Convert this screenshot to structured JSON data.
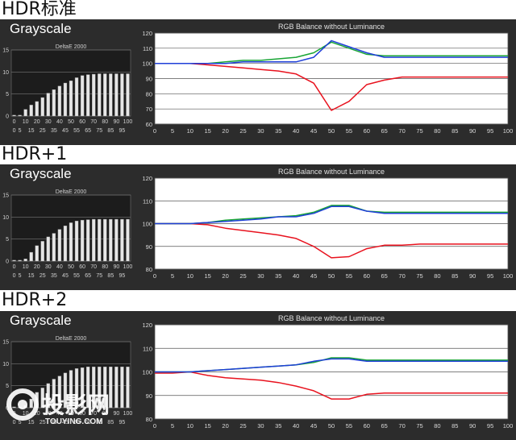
{
  "sections": [
    {
      "label": "HDR标准",
      "grayscale_title": "Grayscale"
    },
    {
      "label": "HDR+1",
      "grayscale_title": "Grayscale"
    },
    {
      "label": "HDR+2",
      "grayscale_title": "Grayscale"
    }
  ],
  "watermark": {
    "brand": "投影网",
    "url": "TOUYING.COM"
  },
  "colors": {
    "red": "#e8121e",
    "green": "#19a535",
    "blue": "#1f3fd8",
    "panel": "#2c2c2c"
  },
  "chart_data": [
    {
      "type": "bar",
      "title": "DeltaE 2000",
      "categories": [
        "0",
        "5",
        "10",
        "15",
        "20",
        "25",
        "30",
        "35",
        "40",
        "45",
        "50",
        "55",
        "60",
        "65",
        "70",
        "75",
        "80",
        "85",
        "90",
        "95",
        "100"
      ],
      "tick_labels": [
        "0",
        "5",
        "15",
        "25",
        "35",
        "45",
        "55",
        "65",
        "75",
        "85",
        "95"
      ],
      "values": [
        0.2,
        0.2,
        1.5,
        2.5,
        3.3,
        4.2,
        5.2,
        6.0,
        6.8,
        7.5,
        8.0,
        8.7,
        9.2,
        9.4,
        9.5,
        9.6,
        9.6,
        9.6,
        9.6,
        9.6,
        9.6
      ],
      "ylim": [
        0,
        15
      ],
      "yticks": [
        0,
        5,
        10,
        15
      ]
    },
    {
      "type": "line",
      "title": "RGB Balance without Luminance",
      "x": [
        0,
        5,
        10,
        15,
        20,
        25,
        30,
        35,
        40,
        45,
        50,
        55,
        60,
        65,
        70,
        75,
        80,
        85,
        90,
        95,
        100
      ],
      "ylim": [
        60,
        120
      ],
      "yticks": [
        60,
        70,
        80,
        90,
        100,
        110,
        120
      ],
      "series": [
        {
          "color": "red",
          "values": [
            100,
            100,
            100,
            99,
            98,
            97,
            96,
            95,
            93,
            87,
            69,
            75,
            86,
            89,
            91,
            91,
            91,
            91,
            91,
            91,
            91
          ]
        },
        {
          "color": "green",
          "values": [
            100,
            100,
            100,
            100,
            101,
            102,
            102,
            103,
            104,
            107,
            114,
            110,
            106,
            105,
            105,
            105,
            105,
            105,
            105,
            105,
            105
          ]
        },
        {
          "color": "blue",
          "values": [
            100,
            100,
            100,
            100,
            100,
            101,
            101,
            101,
            101,
            104,
            115,
            111,
            107,
            104,
            104,
            104,
            104,
            104,
            104,
            104,
            104
          ]
        }
      ]
    },
    {
      "type": "bar",
      "title": "DeltaE 2000",
      "categories": [
        "0",
        "5",
        "10",
        "15",
        "20",
        "25",
        "30",
        "35",
        "40",
        "45",
        "50",
        "55",
        "60",
        "65",
        "70",
        "75",
        "80",
        "85",
        "90",
        "95",
        "100"
      ],
      "tick_labels": [
        "0",
        "5",
        "15",
        "25",
        "35",
        "45",
        "55",
        "65",
        "75",
        "85",
        "95"
      ],
      "values": [
        0.2,
        0.2,
        0.5,
        2.0,
        3.5,
        4.5,
        5.5,
        6.3,
        7.2,
        8.0,
        8.7,
        9.1,
        9.3,
        9.4,
        9.5,
        9.5,
        9.5,
        9.5,
        9.5,
        9.5,
        9.5
      ],
      "ylim": [
        0,
        15
      ],
      "yticks": [
        0,
        5,
        10,
        15
      ]
    },
    {
      "type": "line",
      "title": "RGB Balance without Luminance",
      "x": [
        0,
        5,
        10,
        15,
        20,
        25,
        30,
        35,
        40,
        45,
        50,
        55,
        60,
        65,
        70,
        75,
        80,
        85,
        90,
        95,
        100
      ],
      "ylim": [
        80,
        120
      ],
      "yticks": [
        80,
        90,
        100,
        110,
        120
      ],
      "series": [
        {
          "color": "red",
          "values": [
            100,
            100,
            100,
            99.5,
            98,
            97,
            96,
            95,
            93.5,
            90,
            85,
            85.5,
            89,
            90.5,
            90.5,
            91,
            91,
            91,
            91,
            91,
            91
          ]
        },
        {
          "color": "green",
          "values": [
            100,
            100,
            100,
            100.5,
            101.5,
            102,
            102.5,
            103,
            103.5,
            105,
            108,
            108,
            105.5,
            105,
            105,
            105,
            105,
            105,
            105,
            105,
            105
          ]
        },
        {
          "color": "blue",
          "values": [
            100,
            100,
            100,
            100.5,
            101,
            101.5,
            102,
            103,
            103,
            104.5,
            107.5,
            107.5,
            105.5,
            104.5,
            104.5,
            104.5,
            104.5,
            104.5,
            104.5,
            104.5,
            104.5
          ]
        }
      ]
    },
    {
      "type": "bar",
      "title": "DeltaE 2000",
      "categories": [
        "0",
        "5",
        "10",
        "15",
        "20",
        "25",
        "30",
        "35",
        "40",
        "45",
        "50",
        "55",
        "60",
        "65",
        "70",
        "75",
        "80",
        "85",
        "90",
        "95",
        "100"
      ],
      "tick_labels": [
        "0",
        "5",
        "15",
        "25",
        "35",
        "45",
        "55",
        "65",
        "75",
        "85",
        "95"
      ],
      "values": [
        0.2,
        0.2,
        0.5,
        2.0,
        3.5,
        4.5,
        5.5,
        6.5,
        7.2,
        7.9,
        8.5,
        8.9,
        9.1,
        9.3,
        9.3,
        9.3,
        9.3,
        9.3,
        9.3,
        9.3,
        9.3
      ],
      "ylim": [
        0,
        15
      ],
      "yticks": [
        0,
        5,
        10,
        15
      ]
    },
    {
      "type": "line",
      "title": "RGB Balance without Luminance",
      "x": [
        0,
        5,
        10,
        15,
        20,
        25,
        30,
        35,
        40,
        45,
        50,
        55,
        60,
        65,
        70,
        75,
        80,
        85,
        90,
        95,
        100
      ],
      "ylim": [
        80,
        120
      ],
      "yticks": [
        80,
        90,
        100,
        110,
        120
      ],
      "series": [
        {
          "color": "red",
          "values": [
            99.5,
            99.5,
            100,
            98.5,
            97.5,
            97,
            96.5,
            95.5,
            94,
            92,
            88.5,
            88.5,
            90.5,
            91,
            91,
            91,
            91,
            91,
            91,
            91,
            91
          ]
        },
        {
          "color": "green",
          "values": [
            100,
            100,
            100,
            100.5,
            101,
            101.5,
            102,
            102.5,
            103,
            104,
            106,
            106,
            105,
            105,
            105,
            105,
            105,
            105,
            105,
            105,
            105
          ]
        },
        {
          "color": "blue",
          "values": [
            100,
            100,
            100,
            100.5,
            101,
            101.5,
            102,
            102.5,
            103,
            104.5,
            105.5,
            105.5,
            104.5,
            104.5,
            104.5,
            104.5,
            104.5,
            104.5,
            104.5,
            104.5,
            104.5
          ]
        }
      ]
    }
  ]
}
